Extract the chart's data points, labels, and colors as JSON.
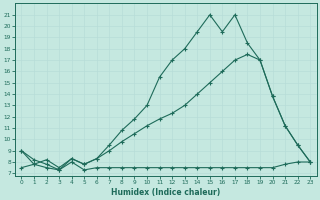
{
  "xlabel": "Humidex (Indice chaleur)",
  "bg_color": "#c5e8e0",
  "grid_color": "#b8ddd8",
  "line_color": "#1e6b5a",
  "xlim": [
    -0.5,
    23.5
  ],
  "ylim": [
    6.8,
    22.0
  ],
  "ytick_vals": [
    7,
    8,
    9,
    10,
    11,
    12,
    13,
    14,
    15,
    16,
    17,
    18,
    19,
    20,
    21
  ],
  "xtick_vals": [
    0,
    1,
    2,
    3,
    4,
    5,
    6,
    7,
    8,
    9,
    10,
    11,
    12,
    13,
    14,
    15,
    16,
    17,
    18,
    19,
    20,
    21,
    22,
    23
  ],
  "series": [
    {
      "x": [
        0,
        1,
        2,
        3,
        4,
        5,
        6,
        7,
        8,
        9,
        10,
        11,
        12,
        13,
        14,
        15,
        16,
        17,
        18,
        19,
        20,
        21,
        22,
        23
      ],
      "y": [
        9.0,
        8.2,
        7.8,
        7.3,
        8.3,
        7.8,
        8.3,
        9.5,
        10.8,
        11.8,
        13.0,
        15.5,
        17.0,
        18.0,
        19.5,
        21.0,
        19.5,
        21.0,
        18.5,
        17.0,
        13.8,
        11.2,
        9.5,
        8.0
      ]
    },
    {
      "x": [
        0,
        1,
        2,
        3,
        4,
        5,
        6,
        7,
        8,
        9,
        10,
        11,
        12,
        13,
        14,
        15,
        16,
        17,
        18,
        19,
        20,
        21,
        22,
        23
      ],
      "y": [
        7.5,
        7.8,
        8.2,
        7.5,
        8.3,
        7.8,
        8.3,
        9.0,
        9.8,
        10.5,
        11.2,
        11.8,
        12.3,
        13.0,
        14.0,
        15.0,
        16.0,
        17.0,
        17.5,
        17.0,
        13.8,
        11.2,
        9.5,
        8.0
      ]
    },
    {
      "x": [
        0,
        1,
        2,
        3,
        4,
        5,
        6,
        7,
        8,
        9,
        10,
        11,
        12,
        13,
        14,
        15,
        16,
        17,
        18,
        19,
        20,
        21,
        22,
        23
      ],
      "y": [
        9.0,
        7.8,
        7.5,
        7.3,
        8.0,
        7.3,
        7.5,
        7.5,
        7.5,
        7.5,
        7.5,
        7.5,
        7.5,
        7.5,
        7.5,
        7.5,
        7.5,
        7.5,
        7.5,
        7.5,
        7.5,
        7.8,
        8.0,
        8.0
      ]
    }
  ]
}
